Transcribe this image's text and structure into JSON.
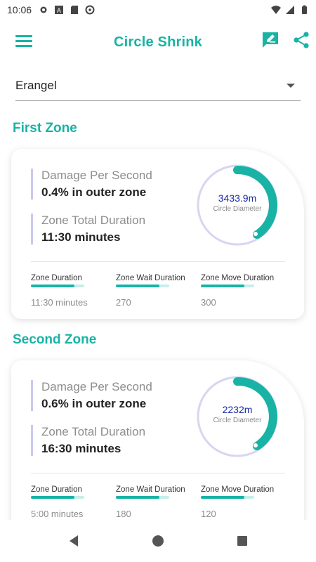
{
  "status_bar": {
    "time": "10:06",
    "left_icons": [
      "gear-icon",
      "font-icon",
      "sd-card-icon",
      "sync-icon"
    ],
    "right_icons": [
      "wifi-icon",
      "signal-icon",
      "battery-icon"
    ]
  },
  "app_bar": {
    "title": "Circle Shrink",
    "menu_icon": "hamburger-menu-icon",
    "actions": [
      "edit-icon",
      "share-icon"
    ]
  },
  "map_select": {
    "selected": "Erangel"
  },
  "colors": {
    "accent": "#18b3a5",
    "gauge_ring": "#d6d6f2",
    "gauge_text": "#1a2aa8",
    "divider": "#c9c9ee"
  },
  "zones": [
    {
      "title": "First Zone",
      "damage_label": "Damage Per Second",
      "damage_value": "0.4% in outer zone",
      "duration_label": "Zone Total Duration",
      "duration_value": "11:30 minutes",
      "gauge_value": "3433.9m",
      "gauge_label": "Circle Diameter",
      "metrics": [
        {
          "label": "Zone Duration",
          "value": "11:30 minutes"
        },
        {
          "label": "Zone Wait Duration",
          "value": "270"
        },
        {
          "label": "Zone Move Duration",
          "value": "300"
        }
      ]
    },
    {
      "title": "Second Zone",
      "damage_label": "Damage Per Second",
      "damage_value": "0.6% in outer zone",
      "duration_label": "Zone Total Duration",
      "duration_value": "16:30 minutes",
      "gauge_value": "2232m",
      "gauge_label": "Circle Diameter",
      "metrics": [
        {
          "label": "Zone Duration",
          "value": "5:00 minutes"
        },
        {
          "label": "Zone Wait Duration",
          "value": "180"
        },
        {
          "label": "Zone Move Duration",
          "value": "120"
        }
      ]
    }
  ],
  "nav_bar": [
    "back-icon",
    "home-icon",
    "recents-icon"
  ]
}
